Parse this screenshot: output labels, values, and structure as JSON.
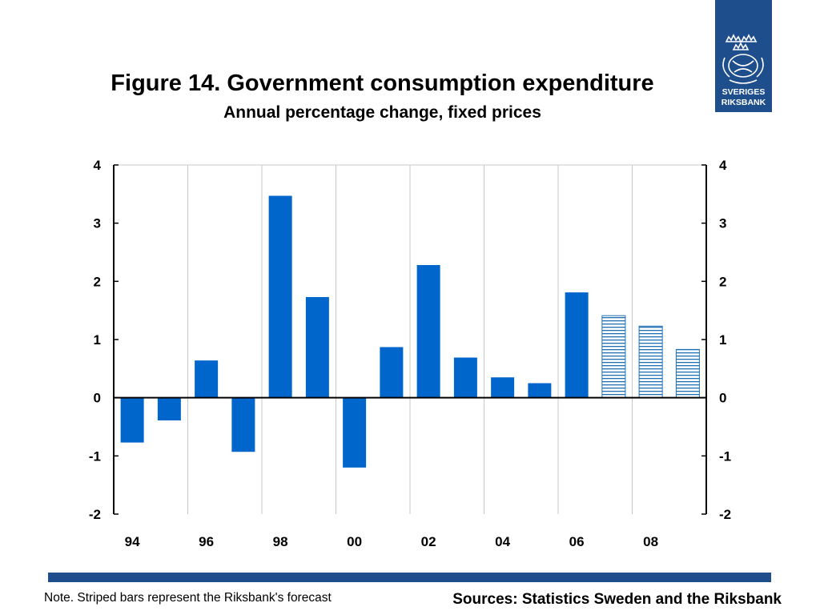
{
  "logo": {
    "line1": "SVERIGES",
    "line2": "RIKSBANK"
  },
  "title": "Figure 14. Government consumption expenditure",
  "subtitle": "Annual percentage change, fixed prices",
  "note": "Note. Striped bars represent the Riksbank's forecast",
  "sources": "Sources: Statistics Sweden and the Riksbank",
  "colors": {
    "bar": "#0066cc",
    "forecast_stripe": "#1f6fb5",
    "brand": "#1f4e8c"
  },
  "chart_data": {
    "type": "bar",
    "categories": [
      "1994",
      "1995",
      "1996",
      "1997",
      "1998",
      "1999",
      "2000",
      "2001",
      "2002",
      "2003",
      "2004",
      "2005",
      "2006",
      "2007",
      "2008",
      "2009"
    ],
    "x_tick_labels": [
      "94",
      "96",
      "98",
      "00",
      "02",
      "04",
      "06",
      "08"
    ],
    "values": [
      -0.77,
      -0.39,
      0.64,
      -0.93,
      3.47,
      1.73,
      -1.2,
      0.87,
      2.28,
      0.69,
      0.35,
      0.25,
      1.81,
      1.41,
      1.23,
      0.83
    ],
    "forecast": [
      false,
      false,
      false,
      false,
      false,
      false,
      false,
      false,
      false,
      false,
      false,
      false,
      false,
      true,
      true,
      true
    ],
    "ylim": [
      -2,
      4
    ],
    "yticks": [
      -2,
      -1,
      0,
      1,
      2,
      3,
      4
    ],
    "y_axis_both_sides": true,
    "grid": "vertical",
    "legend": "none"
  }
}
